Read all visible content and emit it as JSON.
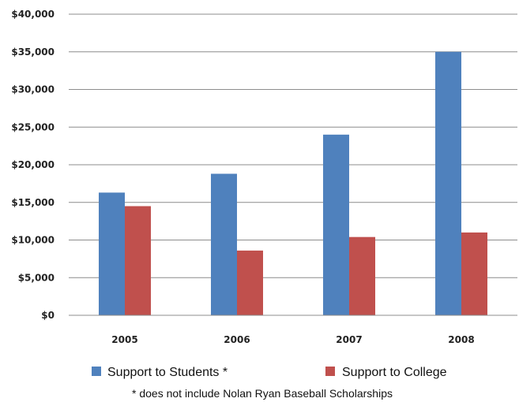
{
  "chart_data": {
    "type": "bar",
    "categories": [
      "2005",
      "2006",
      "2007",
      "2008"
    ],
    "series": [
      {
        "name": "Support to Students *",
        "color": "#4F81BD",
        "values": [
          16300,
          18800,
          24000,
          35000
        ]
      },
      {
        "name": "Support to College",
        "color": "#C0504D",
        "values": [
          14500,
          8600,
          10400,
          11000
        ]
      }
    ],
    "ylim": [
      0,
      40000
    ],
    "y_ticks": [
      0,
      5000,
      10000,
      15000,
      20000,
      25000,
      30000,
      35000,
      40000
    ],
    "y_tick_labels": [
      "$0",
      "$5,000",
      "$10,000",
      "$15,000",
      "$20,000",
      "$25,000",
      "$30,000",
      "$35,000",
      "$40,000"
    ],
    "grid": true,
    "legend_position": "bottom",
    "footnote": "* does not include Nolan Ryan Baseball Scholarships"
  }
}
